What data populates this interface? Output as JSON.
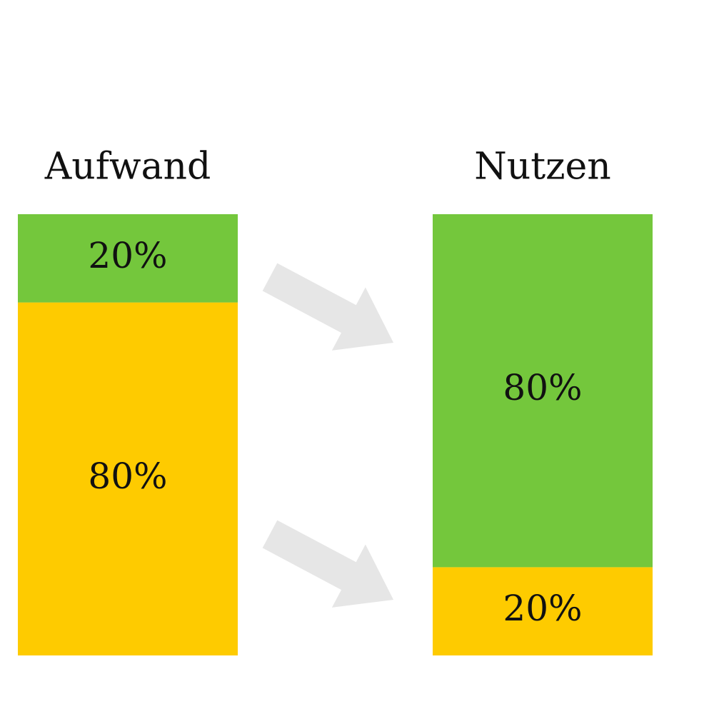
{
  "chart_data": {
    "type": "bar",
    "stacked": true,
    "categories": [
      "Aufwand",
      "Nutzen"
    ],
    "series": [
      {
        "color": "#fecb00",
        "values": [
          80,
          20
        ],
        "value_labels": [
          "80%",
          "20%"
        ]
      },
      {
        "color": "#74c73c",
        "values": [
          20,
          80
        ],
        "value_labels": [
          "20%",
          "80%"
        ]
      }
    ]
  }
}
